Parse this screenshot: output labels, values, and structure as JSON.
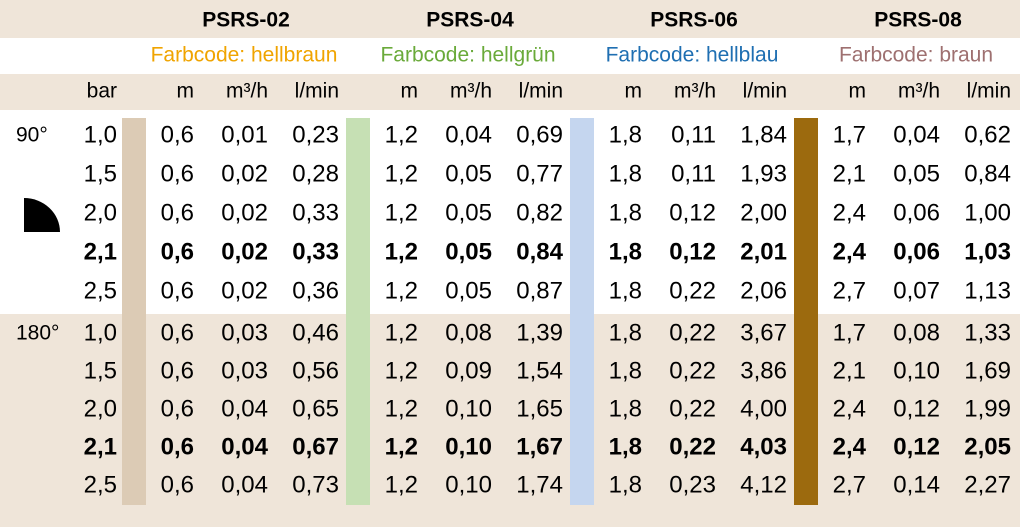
{
  "header": {
    "bar": "bar",
    "groups": [
      {
        "name": "PSRS-02",
        "color_code": "Farbcode: hellbraun",
        "text_color": "#f0a400",
        "swatch": "#dccbb5",
        "units": [
          "m",
          "m³/h",
          "l/min"
        ]
      },
      {
        "name": "PSRS-04",
        "color_code": "Farbcode: hellgrün",
        "text_color": "#6aaa3a",
        "swatch": "#c6e0b4",
        "units": [
          "m",
          "m³/h",
          "l/min"
        ]
      },
      {
        "name": "PSRS-06",
        "color_code": "Farbcode: hellblau",
        "text_color": "#1f6fb2",
        "swatch": "#c5d6ef",
        "units": [
          "m",
          "m³/h",
          "l/min"
        ]
      },
      {
        "name": "PSRS-08",
        "color_code": "Farbcode: braun",
        "text_color": "#9e7070",
        "swatch": "#9c6a0e",
        "units": [
          "m",
          "m³/h",
          "l/min"
        ]
      }
    ]
  },
  "sections": [
    {
      "angle": "90°",
      "rows": [
        {
          "bold": false,
          "cells": [
            "1,0",
            "0,6",
            "0,01",
            "0,23",
            "1,2",
            "0,04",
            "0,69",
            "1,8",
            "0,11",
            "1,84",
            "1,7",
            "0,04",
            "0,62"
          ]
        },
        {
          "bold": false,
          "cells": [
            "1,5",
            "0,6",
            "0,02",
            "0,28",
            "1,2",
            "0,05",
            "0,77",
            "1,8",
            "0,11",
            "1,93",
            "2,1",
            "0,05",
            "0,84"
          ]
        },
        {
          "bold": false,
          "cells": [
            "2,0",
            "0,6",
            "0,02",
            "0,33",
            "1,2",
            "0,05",
            "0,82",
            "1,8",
            "0,12",
            "2,00",
            "2,4",
            "0,06",
            "1,00"
          ]
        },
        {
          "bold": true,
          "cells": [
            "2,1",
            "0,6",
            "0,02",
            "0,33",
            "1,2",
            "0,05",
            "0,84",
            "1,8",
            "0,12",
            "2,01",
            "2,4",
            "0,06",
            "1,03"
          ]
        },
        {
          "bold": false,
          "cells": [
            "2,5",
            "0,6",
            "0,02",
            "0,36",
            "1,2",
            "0,05",
            "0,87",
            "1,8",
            "0,22",
            "2,06",
            "2,7",
            "0,07",
            "1,13"
          ]
        }
      ]
    },
    {
      "angle": "180°",
      "rows": [
        {
          "bold": false,
          "cells": [
            "1,0",
            "0,6",
            "0,03",
            "0,46",
            "1,2",
            "0,08",
            "1,39",
            "1,8",
            "0,22",
            "3,67",
            "1,7",
            "0,08",
            "1,33"
          ]
        },
        {
          "bold": false,
          "cells": [
            "1,5",
            "0,6",
            "0,03",
            "0,56",
            "1,2",
            "0,09",
            "1,54",
            "1,8",
            "0,22",
            "3,86",
            "2,1",
            "0,10",
            "1,69"
          ]
        },
        {
          "bold": false,
          "cells": [
            "2,0",
            "0,6",
            "0,04",
            "0,65",
            "1,2",
            "0,10",
            "1,65",
            "1,8",
            "0,22",
            "4,00",
            "2,4",
            "0,12",
            "1,99"
          ]
        },
        {
          "bold": true,
          "cells": [
            "2,1",
            "0,6",
            "0,04",
            "0,67",
            "1,2",
            "0,10",
            "1,67",
            "1,8",
            "0,22",
            "4,03",
            "2,4",
            "0,12",
            "2,05"
          ]
        },
        {
          "bold": false,
          "cells": [
            "2,5",
            "0,6",
            "0,04",
            "0,73",
            "1,2",
            "0,10",
            "1,74",
            "1,8",
            "0,23",
            "4,12",
            "2,7",
            "0,14",
            "2,27"
          ]
        }
      ]
    }
  ]
}
